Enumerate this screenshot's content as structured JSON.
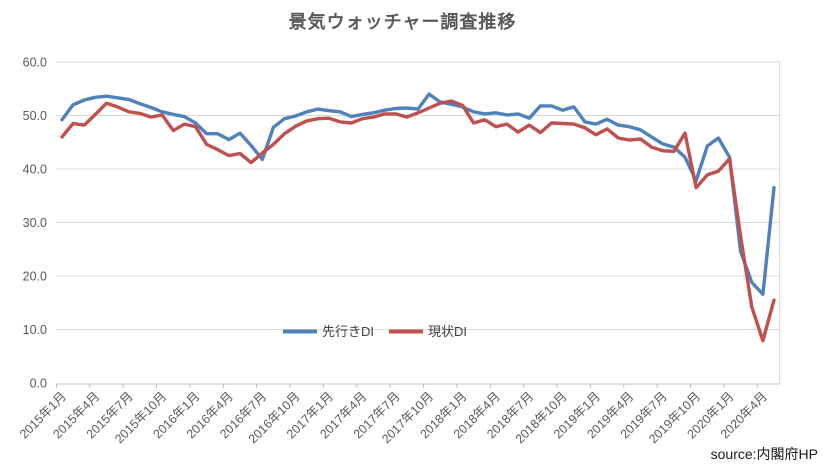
{
  "title": "景気ウォッチャー調査推移",
  "source_note": "source:内閣府HP",
  "colors": {
    "outlook_line": "#4f81bd",
    "current_line": "#c0504d",
    "gridline": "#d9d9d9",
    "axis_line": "#bfbfbf",
    "tick_text": "#595959",
    "legend_text": "#404040",
    "title_text": "#595959"
  },
  "legend": {
    "items": [
      {
        "label": "先行きDI",
        "color": "#4f81bd"
      },
      {
        "label": "現状DI",
        "color": "#c0504d"
      }
    ],
    "position": "inside-bottom-center"
  },
  "chart_data": {
    "type": "line",
    "title": "景気ウォッチャー調査推移",
    "xlabel": "",
    "ylabel": "",
    "ylim": [
      0,
      60
    ],
    "grid": "horizontal",
    "n_points": 65,
    "x_unit": "month (2015年1月〜2020年5月, monthly)",
    "x_tick_every": 3,
    "x_tick_labels": [
      "2015年1月",
      "2015年4月",
      "2015年7月",
      "2015年10月",
      "2016年1月",
      "2016年4月",
      "2016年7月",
      "2016年10月",
      "2017年1月",
      "2017年4月",
      "2017年7月",
      "2017年10月",
      "2018年1月",
      "2018年4月",
      "2018年7月",
      "2018年10月",
      "2019年1月",
      "2019年4月",
      "2019年7月",
      "2019年10月",
      "2020年1月",
      "2020年4月"
    ],
    "y_tick_labels": [
      "0.0",
      "10.0",
      "20.0",
      "30.0",
      "40.0",
      "50.0",
      "60.0"
    ],
    "series": [
      {
        "name": "先行きDI",
        "color": "#4f81bd",
        "values": [
          49.2,
          52.0,
          52.9,
          53.4,
          53.6,
          53.3,
          53.0,
          52.2,
          51.5,
          50.7,
          50.2,
          49.8,
          48.6,
          46.6,
          46.6,
          45.5,
          46.7,
          44.4,
          41.8,
          47.8,
          49.4,
          49.9,
          50.7,
          51.2,
          50.9,
          50.7,
          49.8,
          50.2,
          50.5,
          51.0,
          51.3,
          51.4,
          51.2,
          54.0,
          52.5,
          52.1,
          51.6,
          50.7,
          50.3,
          50.5,
          50.1,
          50.3,
          49.5,
          51.8,
          51.8,
          51.0,
          51.6,
          48.8,
          48.4,
          49.3,
          48.2,
          47.9,
          47.3,
          46.0,
          44.7,
          44.1,
          42.2,
          37.8,
          44.3,
          45.8,
          42.2,
          24.6,
          18.8,
          16.6,
          36.5
        ]
      },
      {
        "name": "現状DI",
        "color": "#c0504d",
        "values": [
          46.0,
          48.5,
          48.2,
          50.2,
          52.3,
          51.6,
          50.7,
          50.4,
          49.7,
          50.1,
          47.2,
          48.4,
          47.9,
          44.6,
          43.6,
          42.5,
          42.9,
          41.2,
          43.0,
          44.6,
          46.6,
          48.0,
          49.0,
          49.4,
          49.5,
          48.8,
          48.6,
          49.4,
          49.7,
          50.3,
          50.3,
          49.7,
          50.5,
          51.4,
          52.3,
          52.7,
          51.9,
          48.6,
          49.2,
          47.9,
          48.4,
          46.9,
          48.2,
          46.8,
          48.6,
          48.5,
          48.4,
          47.7,
          46.4,
          47.5,
          45.8,
          45.4,
          45.6,
          44.1,
          43.4,
          43.3,
          46.7,
          36.5,
          38.9,
          39.6,
          41.9,
          27.4,
          14.2,
          7.9,
          15.5
        ]
      }
    ]
  }
}
